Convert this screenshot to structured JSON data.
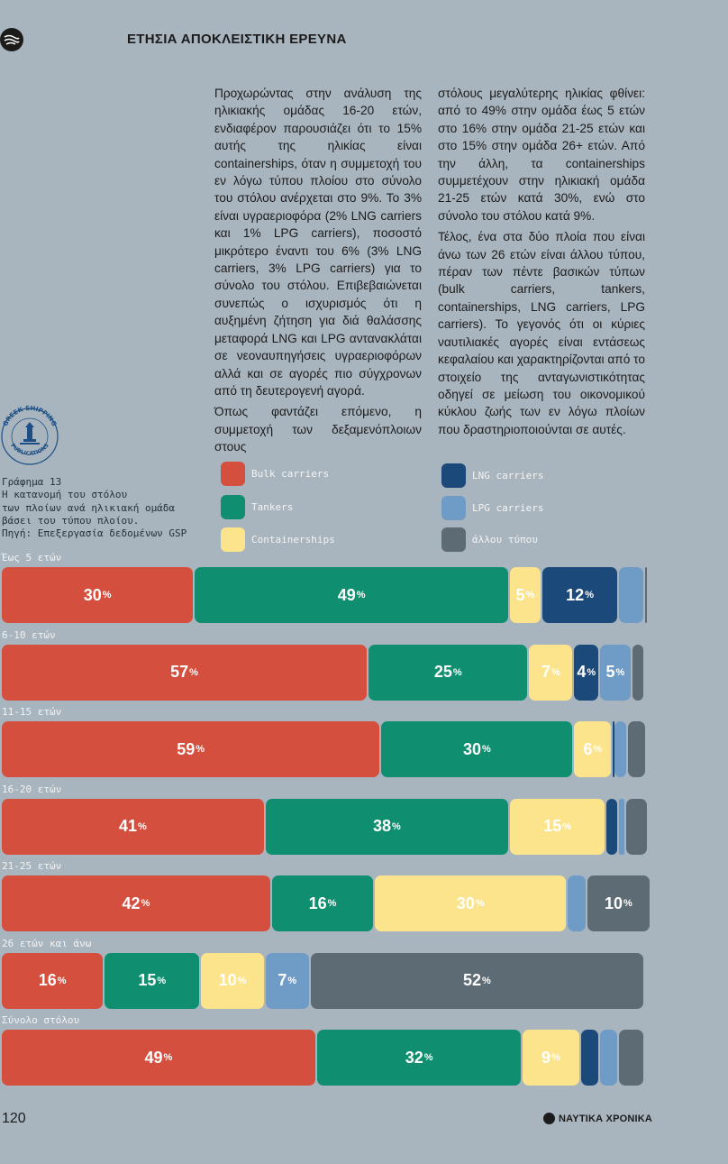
{
  "header": {
    "title": "ΕΤΗΣΙΑ ΑΠΟΚΛΕΙΣΤΙΚΗ ΕΡΕΥΝΑ"
  },
  "article": {
    "col1_p1": "Προχωρώντας στην ανάλυση της ηλικιακής ομάδας 16-20 ετών, ενδιαφέρον παρουσιάζει ότι το 15% αυτής της ηλικίας είναι containerships, όταν η συμμετοχή του εν λόγω τύπου πλοίου στο σύνολο του στόλου ανέρχεται στο 9%. Το 3% είναι υγραεριοφόρα (2% LNG carriers και 1% LPG carriers), ποσοστό μικρότερο έναντι του 6% (3% LNG carriers, 3% LPG carriers) για το σύνολο του στόλου. Επιβεβαιώνεται συνεπώς ο ισχυρισμός ότι η αυξημένη ζήτηση για διά θαλάσσης μεταφορά LNG και LPG αντανακλάται σε νεοναυπηγήσεις υγραεριοφόρων αλλά και σε αγορές πιο σύγχρονων από τη δευτερογενή αγορά.",
    "col1_p2": "Όπως φαντάζει επόμενο, η συμμετοχή των δεξαμενόπλοιων στους",
    "col2_p1": "στόλους μεγαλύτερης ηλικίας φθίνει: από το 49% στην ομάδα έως 5 ετών στο 16% στην ομάδα 21-25 ετών και στο 15% στην ομάδα 26+ ετών. Από την άλλη, τα containerships συμμετέχουν στην ηλικιακή ομάδα 21-25 ετών κατά 30%, ενώ στο σύνολο του στόλου κατά 9%.",
    "col2_p2": "Τέλος, ένα στα δύο πλοία που είναι άνω των 26 ετών είναι άλλου τύπου, πέραν των πέντε βασικών τύπων (bulk carriers, tankers, containerships, LNG carriers, LPG carriers). Το γεγονός ότι οι κύριες ναυτιλιακές αγορές είναι εντάσεως κεφαλαίου και χαρακτηρίζονται από το στοιχείο της ανταγωνιστικότητας οδηγεί σε μείωση του οικονομικού κύκλου ζωής των εν λόγω πλοίων που δραστηριοποιούνται σε αυτές."
  },
  "stamp": {
    "top_text": "GREEK SHIPPING",
    "bottom_text": "PUBLICATIONS"
  },
  "chart_data": {
    "type": "bar",
    "orientation": "horizontal-stacked-100",
    "title": "Γράφημα 13\nΗ κατανομή του στόλου\nτων πλοίων ανά ηλικιακή ομάδα\nβάσει του τύπου πλοίου.\nΠηγή: Επεξεργασία δεδομένων GSP",
    "categories": [
      "Έως 5 ετών",
      "6-10 ετών",
      "11-15 ετών",
      "16-20 ετών",
      "21-25 ετών",
      "26 ετών και άνω",
      "Σύνολο στόλου"
    ],
    "series": [
      {
        "name": "Bulk carriers",
        "color": "#d44f3d",
        "values": [
          30,
          57,
          59,
          41,
          42,
          16,
          49
        ]
      },
      {
        "name": "Tankers",
        "color": "#0f8f6f",
        "values": [
          49,
          25,
          30,
          38,
          16,
          15,
          32
        ]
      },
      {
        "name": "Containerships",
        "color": "#fbe48c",
        "values": [
          5,
          7,
          6,
          15,
          30,
          10,
          9
        ]
      },
      {
        "name": "LNG carriers",
        "color": "#1b4a7a",
        "values": [
          12,
          4,
          0.3,
          2,
          0,
          0,
          3
        ]
      },
      {
        "name": "LPG carriers",
        "color": "#6f9cc6",
        "values": [
          4,
          5,
          2,
          1,
          3,
          7,
          3
        ]
      },
      {
        "name": "άλλου τύπου",
        "color": "#5d6b74",
        "values": [
          0.3,
          2,
          3,
          3.5,
          10,
          52,
          4
        ]
      }
    ],
    "labels": [
      [
        "30",
        "49",
        "5",
        "12",
        "",
        ""
      ],
      [
        "57",
        "25",
        "7",
        "4",
        "5",
        ""
      ],
      [
        "59",
        "30",
        "6",
        "",
        "",
        ""
      ],
      [
        "41",
        "38",
        "15",
        "",
        "",
        ""
      ],
      [
        "42",
        "16",
        "30",
        "",
        "",
        "10"
      ],
      [
        "16",
        "15",
        "10",
        "",
        "7",
        "52"
      ],
      [
        "49",
        "32",
        "9",
        "",
        "",
        ""
      ]
    ],
    "label_suffix": "%",
    "xlim": [
      0,
      100
    ]
  },
  "footer": {
    "page_number": "120",
    "brand": "ΝΑΥΤΙΚΑ ΧΡΟΝΙΚΑ"
  }
}
